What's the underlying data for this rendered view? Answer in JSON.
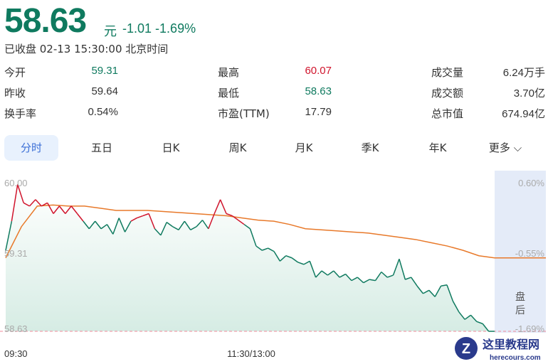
{
  "quote": {
    "price": "58.63",
    "unit": "元",
    "change": "-1.01",
    "change_pct": "-1.69%",
    "status": "已收盘 02-13 15:30:00 北京时间"
  },
  "stats": [
    {
      "label": "今开",
      "value": "59.31",
      "color": "#0f7a5f"
    },
    {
      "label": "昨收",
      "value": "59.64",
      "color": "#333333"
    },
    {
      "label": "换手率",
      "value": "0.54%",
      "color": "#333333"
    },
    {
      "label": "最高",
      "value": "60.07",
      "color": "#d0142c"
    },
    {
      "label": "最低",
      "value": "58.63",
      "color": "#0f7a5f"
    },
    {
      "label": "市盈(TTM)",
      "value": "17.79",
      "color": "#333333"
    },
    {
      "label": "成交量",
      "value": "6.24万手",
      "color": "#333333"
    },
    {
      "label": "成交额",
      "value": "3.70亿",
      "color": "#333333"
    },
    {
      "label": "总市值",
      "value": "674.94亿",
      "color": "#333333"
    }
  ],
  "tabs": [
    {
      "label": "分时",
      "active": true
    },
    {
      "label": "五日"
    },
    {
      "label": "日K"
    },
    {
      "label": "周K"
    },
    {
      "label": "月K"
    },
    {
      "label": "季K"
    },
    {
      "label": "年K"
    },
    {
      "label": "更多"
    }
  ],
  "chart_data": {
    "type": "line",
    "prev_close": 59.64,
    "ylim": [
      58.63,
      60.0
    ],
    "y_left_ticks": [
      "60.00",
      "59.31",
      "58.63"
    ],
    "y_right_ticks": [
      "0.60%",
      "-0.55%",
      "-1.69%"
    ],
    "x_ticks": [
      "09:30",
      "11:30/13:00"
    ],
    "after_hours_label": "盘后",
    "colors": {
      "up": "#d0142c",
      "down": "#0f7a5f",
      "avg": "#e8792a",
      "low_line": "#f08a9a"
    },
    "series": [
      {
        "name": "price",
        "values": [
          59.38,
          59.65,
          59.99,
          59.82,
          59.79,
          59.85,
          59.79,
          59.82,
          59.72,
          59.79,
          59.72,
          59.79,
          59.72,
          59.65,
          59.58,
          59.65,
          59.58,
          59.62,
          59.53,
          59.68,
          59.55,
          59.65,
          59.68,
          59.7,
          59.72,
          59.58,
          59.52,
          59.64,
          59.6,
          59.57,
          59.65,
          59.57,
          59.6,
          59.66,
          59.58,
          59.72,
          59.85,
          59.72,
          59.7,
          59.66,
          59.62,
          59.58,
          59.42,
          59.38,
          59.4,
          59.37,
          59.28,
          59.33,
          59.31,
          59.27,
          59.25,
          59.28,
          59.13,
          59.19,
          59.15,
          59.19,
          59.13,
          59.16,
          59.1,
          59.13,
          59.08,
          59.11,
          59.1,
          59.18,
          59.13,
          59.15,
          59.3,
          59.11,
          59.13,
          59.05,
          58.98,
          59.01,
          58.95,
          59.05,
          59.06,
          58.91,
          58.81,
          58.74,
          58.78,
          58.72,
          58.7,
          58.63,
          58.63
        ]
      },
      {
        "name": "avg",
        "values": [
          59.31,
          59.6,
          59.79,
          59.8,
          59.79,
          59.79,
          59.77,
          59.75,
          59.75,
          59.75,
          59.74,
          59.73,
          59.72,
          59.71,
          59.7,
          59.68,
          59.66,
          59.65,
          59.62,
          59.58,
          59.57,
          59.56,
          59.55,
          59.54,
          59.52,
          59.5,
          59.48,
          59.45,
          59.42,
          59.38,
          59.33,
          59.31
        ]
      }
    ]
  },
  "watermark": {
    "text": "这里教程网",
    "sub": "herecours.com"
  }
}
